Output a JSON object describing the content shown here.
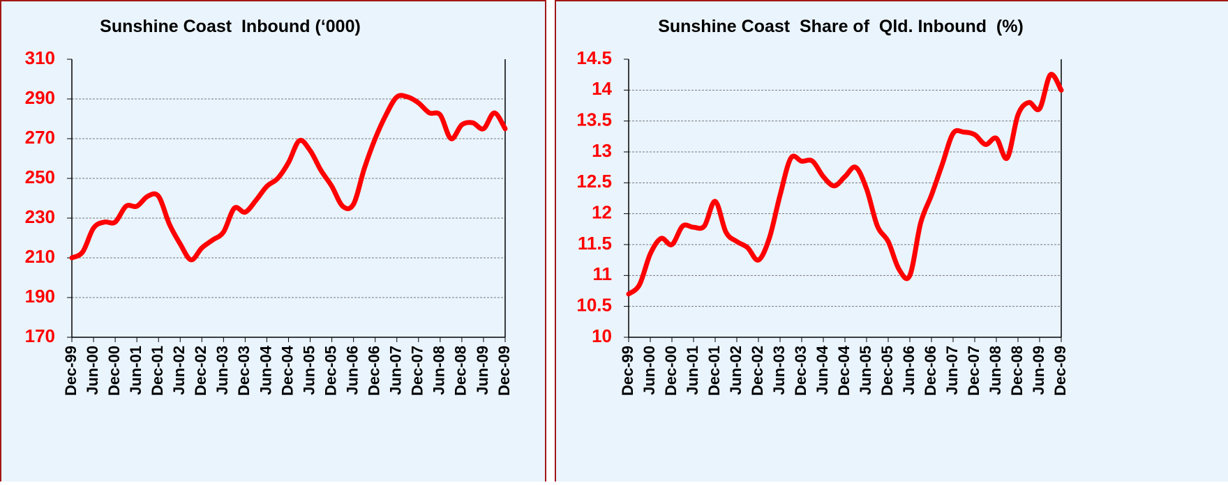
{
  "chart_data": [
    {
      "type": "line",
      "title": "Sunshine Coast  Inbound (‘000)",
      "categories": [
        "Dec-99",
        null,
        "Jun-00",
        null,
        "Dec-00",
        null,
        "Jun-01",
        null,
        "Dec-01",
        null,
        "Jun-02",
        null,
        "Dec-02",
        null,
        "Jun-03",
        null,
        "Dec-03",
        null,
        "Jun-04",
        null,
        "Dec-04",
        null,
        "Jun-05",
        null,
        "Dec-05",
        null,
        "Jun-06",
        null,
        "Dec-06",
        null,
        "Jun-07",
        null,
        "Dec-07",
        null,
        "Jun-08",
        null,
        "Dec-08",
        null,
        "Jun-09",
        null,
        "Dec-09"
      ],
      "values": [
        210,
        213,
        225,
        228,
        228,
        236,
        236,
        241,
        241,
        227,
        217,
        209,
        215,
        219,
        223,
        235,
        233,
        239,
        246,
        250,
        258,
        269,
        264,
        254,
        246,
        236,
        237,
        255,
        270,
        282,
        291,
        291,
        288,
        283,
        282,
        270,
        277,
        278,
        275,
        283,
        275
      ],
      "color": "#ff0000",
      "ylim": [
        170,
        310
      ],
      "yticks": [
        170,
        190,
        210,
        230,
        250,
        270,
        290,
        310
      ],
      "grid": true
    },
    {
      "type": "line",
      "title": "Sunshine Coast  Share of  Qld. Inbound  (%)",
      "categories": [
        "Dec-99",
        null,
        "Jun-00",
        null,
        "Dec-00",
        null,
        "Jun-01",
        null,
        "Dec-01",
        null,
        "Jun-02",
        null,
        "Dec-02",
        null,
        "Jun-03",
        null,
        "Dec-03",
        null,
        "Jun-04",
        null,
        "Dec-04",
        null,
        "Jun-05",
        null,
        "Dec-05",
        null,
        "Jun-06",
        null,
        "Dec-06",
        null,
        "Jun-07",
        null,
        "Dec-07",
        null,
        "Jun-08",
        null,
        "Dec-08",
        null,
        "Jun-09",
        null,
        "Dec-09"
      ],
      "values": [
        10.7,
        10.85,
        11.35,
        11.6,
        11.5,
        11.8,
        11.78,
        11.8,
        12.2,
        11.7,
        11.55,
        11.45,
        11.25,
        11.6,
        12.3,
        12.9,
        12.85,
        12.85,
        12.6,
        12.45,
        12.6,
        12.75,
        12.4,
        11.8,
        11.55,
        11.1,
        11.0,
        11.85,
        12.3,
        12.8,
        13.3,
        13.32,
        13.28,
        13.12,
        13.22,
        12.9,
        13.6,
        13.8,
        13.7,
        14.25,
        14.0
      ],
      "color": "#ff0000",
      "ylim": [
        10,
        14.5
      ],
      "yticks": [
        10,
        10.5,
        11,
        11.5,
        12,
        12.5,
        13,
        13.5,
        14,
        14.5
      ],
      "grid": true
    }
  ]
}
